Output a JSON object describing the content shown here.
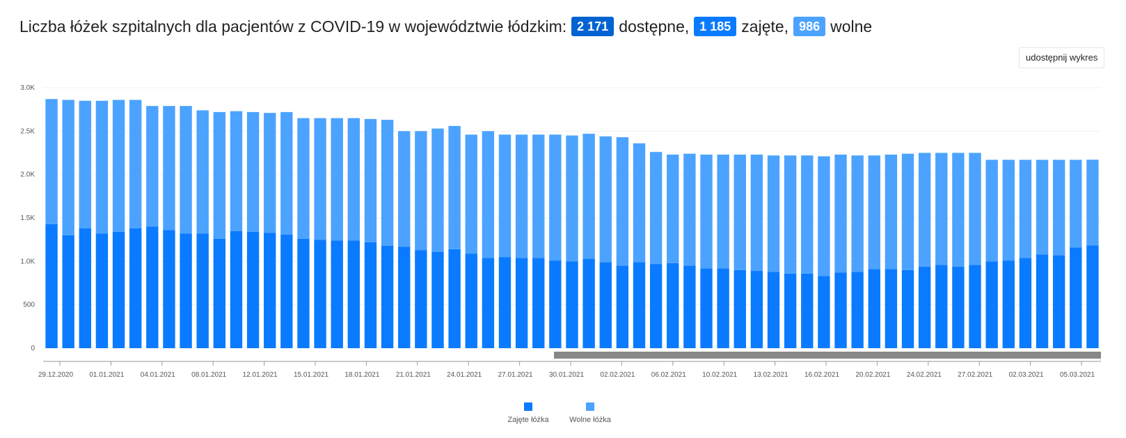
{
  "header": {
    "title_prefix": "Liczba łóżek szpitalnych dla pacjentów z COVID-19 w województwie łódzkim:",
    "total_value": "2 171",
    "total_label": "dostępne,",
    "occupied_value": "1 185",
    "occupied_label": "zajęte,",
    "free_value": "986",
    "free_label": "wolne"
  },
  "share_button": {
    "label": "udostępnij wykres"
  },
  "colors": {
    "occupied": "#0a7bff",
    "free": "#4ba3ff",
    "badge_total": "#0063d1",
    "scrollbar": "#888888"
  },
  "chart_data": {
    "type": "bar",
    "stacked": true,
    "ylim": [
      0,
      3000
    ],
    "yticks": [
      "0",
      "500",
      "1.0K",
      "1.5K",
      "2.0K",
      "2.5K",
      "3.0K"
    ],
    "x_tick_labels": [
      "29.12.2020",
      "01.01.2021",
      "04.01.2021",
      "08.01.2021",
      "12.01.2021",
      "15.01.2021",
      "18.01.2021",
      "21.01.2021",
      "24.01.2021",
      "27.01.2021",
      "30.01.2021",
      "02.02.2021",
      "06.02.2021",
      "10.02.2021",
      "13.02.2021",
      "16.02.2021",
      "20.02.2021",
      "24.02.2021",
      "27.02.2021",
      "02.03.2021",
      "05.03.2021"
    ],
    "series": [
      {
        "name": "Zajęte łóżka",
        "values": [
          1430,
          1300,
          1380,
          1320,
          1340,
          1380,
          1400,
          1360,
          1320,
          1320,
          1260,
          1350,
          1340,
          1330,
          1310,
          1260,
          1250,
          1240,
          1240,
          1220,
          1180,
          1170,
          1130,
          1110,
          1140,
          1090,
          1040,
          1050,
          1040,
          1040,
          1010,
          1000,
          1030,
          990,
          950,
          990,
          970,
          980,
          950,
          920,
          920,
          900,
          890,
          880,
          860,
          860,
          830,
          870,
          880,
          910,
          910,
          900,
          940,
          960,
          940,
          960,
          1000,
          1010,
          1040,
          1080,
          1070,
          1160,
          1185
        ]
      },
      {
        "name": "Wolne łóżka",
        "values": [
          1440,
          1560,
          1470,
          1530,
          1520,
          1480,
          1390,
          1430,
          1470,
          1420,
          1460,
          1380,
          1380,
          1380,
          1410,
          1390,
          1400,
          1410,
          1410,
          1420,
          1450,
          1330,
          1370,
          1420,
          1420,
          1370,
          1460,
          1410,
          1420,
          1420,
          1450,
          1450,
          1440,
          1450,
          1480,
          1370,
          1290,
          1250,
          1290,
          1310,
          1310,
          1330,
          1340,
          1340,
          1360,
          1360,
          1380,
          1360,
          1340,
          1310,
          1320,
          1340,
          1310,
          1290,
          1310,
          1290,
          1170,
          1160,
          1130,
          1090,
          1100,
          1010,
          986
        ]
      }
    ]
  }
}
